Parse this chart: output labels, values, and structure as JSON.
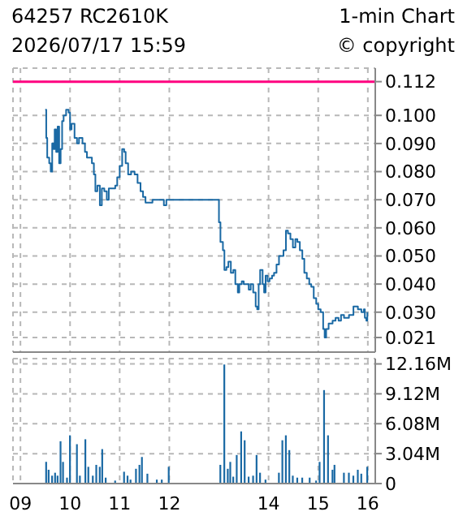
{
  "chart_data": [
    {
      "type": "step",
      "title": "64257 RC2610K",
      "subtitle": "1-min Chart",
      "annotations": [
        "2026/07/17 15:59",
        "© copyright"
      ],
      "xlim": [
        8.85,
        16.15
      ],
      "xticks": [
        9,
        10,
        11,
        12,
        14,
        15,
        16
      ],
      "ylim": [
        0.0158,
        0.1168
      ],
      "yticks": [
        0.021,
        {
          "value": 0.03,
          "label": "0.030"
        },
        {
          "value": 0.04,
          "label": "0.040"
        },
        {
          "value": 0.05,
          "label": "0.050"
        },
        {
          "value": 0.06,
          "label": "0.060"
        },
        {
          "value": 0.07,
          "label": "0.070"
        },
        {
          "value": 0.08,
          "label": "0.080"
        },
        {
          "value": 0.09,
          "label": "0.090"
        },
        {
          "value": 0.1,
          "label": "0.100"
        },
        0.112
      ],
      "tick_labels": "y",
      "grid": true,
      "ref_lines": [
        {
          "axis": "y",
          "value": 0.112,
          "color": "#ff0080"
        }
      ],
      "series": [
        {
          "color": "#1a69a4",
          "x": [
            9.5,
            9.52,
            9.54,
            9.58,
            9.61,
            9.64,
            9.67,
            9.69,
            9.72,
            9.75,
            9.78,
            9.81,
            9.84,
            9.87,
            9.92,
            9.97,
            10.0,
            10.03,
            10.09,
            10.14,
            10.18,
            10.25,
            10.3,
            10.34,
            10.39,
            10.44,
            10.48,
            10.51,
            10.55,
            10.6,
            10.64,
            10.69,
            10.74,
            10.78,
            10.84,
            10.91,
            10.95,
            11.0,
            11.05,
            11.09,
            11.12,
            11.17,
            11.23,
            11.3,
            11.36,
            11.42,
            11.47,
            11.52,
            11.59,
            11.66,
            11.75,
            11.85,
            11.89,
            11.94,
            11.99,
            13.0,
            13.03,
            13.08,
            13.11,
            13.15,
            13.19,
            13.24,
            13.29,
            13.33,
            13.38,
            13.41,
            13.46,
            13.5,
            13.55,
            13.6,
            13.64,
            13.69,
            13.74,
            13.77,
            13.8,
            13.83,
            13.88,
            13.91,
            13.94,
            13.98,
            14.02,
            14.07,
            14.11,
            14.16,
            14.21,
            14.25,
            14.3,
            14.35,
            14.39,
            14.44,
            14.49,
            14.54,
            14.58,
            14.63,
            14.68,
            14.72,
            14.77,
            14.82,
            14.86,
            14.91,
            14.96,
            15.0,
            15.05,
            15.1,
            15.13,
            15.16,
            15.21,
            15.29,
            15.35,
            15.41,
            15.46,
            15.52,
            15.62,
            15.71,
            15.8,
            15.87,
            15.92,
            15.94,
            15.97,
            15.99
          ],
          "values": [
            0.102,
            0.092,
            0.085,
            0.083,
            0.08,
            0.09,
            0.088,
            0.095,
            0.087,
            0.096,
            0.083,
            0.088,
            0.098,
            0.1,
            0.102,
            0.101,
            0.095,
            0.097,
            0.092,
            0.09,
            0.092,
            0.09,
            0.087,
            0.085,
            0.085,
            0.083,
            0.079,
            0.073,
            0.075,
            0.068,
            0.074,
            0.073,
            0.07,
            0.074,
            0.074,
            0.075,
            0.078,
            0.082,
            0.088,
            0.087,
            0.083,
            0.079,
            0.08,
            0.079,
            0.076,
            0.073,
            0.071,
            0.069,
            0.069,
            0.07,
            0.07,
            0.07,
            0.068,
            0.07,
            0.07,
            0.062,
            0.055,
            0.052,
            0.045,
            0.046,
            0.048,
            0.044,
            0.045,
            0.04,
            0.037,
            0.04,
            0.041,
            0.04,
            0.04,
            0.038,
            0.04,
            0.037,
            0.032,
            0.031,
            0.04,
            0.045,
            0.04,
            0.037,
            0.043,
            0.041,
            0.042,
            0.043,
            0.044,
            0.047,
            0.05,
            0.05,
            0.052,
            0.059,
            0.058,
            0.056,
            0.053,
            0.056,
            0.055,
            0.052,
            0.049,
            0.044,
            0.042,
            0.04,
            0.039,
            0.035,
            0.033,
            0.031,
            0.03,
            0.024,
            0.021,
            0.024,
            0.026,
            0.027,
            0.028,
            0.027,
            0.029,
            0.028,
            0.029,
            0.032,
            0.031,
            0.03,
            0.031,
            0.028,
            0.027,
            0.03
          ]
        }
      ]
    },
    {
      "type": "bar",
      "xlim": [
        8.85,
        16.15
      ],
      "xticks": [
        {
          "value": 9,
          "label": "09"
        },
        10,
        11,
        12,
        14,
        15,
        16
      ],
      "ylim": [
        0,
        12.7
      ],
      "yticks": [
        0,
        {
          "value": 3.04,
          "label": "3.04M"
        },
        {
          "value": 6.08,
          "label": "6.08M"
        },
        {
          "value": 9.12,
          "label": "9.12M"
        },
        {
          "value": 12.16,
          "label": "12.16M"
        }
      ],
      "grid": true,
      "series": [
        {
          "color": "#1a69a4",
          "x": [
            9.52,
            9.57,
            9.64,
            9.7,
            9.75,
            9.81,
            9.86,
            9.94,
            10.0,
            10.14,
            10.2,
            10.31,
            10.37,
            10.46,
            10.53,
            10.6,
            10.65,
            10.72,
            10.91,
            11.09,
            11.16,
            11.22,
            11.33,
            11.4,
            11.45,
            11.56,
            11.75,
            11.85,
            11.99,
            13.03,
            13.11,
            13.18,
            13.23,
            13.29,
            13.36,
            13.45,
            13.52,
            13.6,
            13.69,
            13.76,
            13.83,
            13.94,
            14.21,
            14.28,
            14.35,
            14.42,
            14.49,
            14.58,
            14.68,
            14.83,
            14.96,
            15.03,
            15.12,
            15.2,
            15.29,
            15.33,
            15.52,
            15.62,
            15.71,
            15.8,
            15.87,
            15.99
          ],
          "values": [
            2.2,
            1.4,
            0.8,
            1.1,
            0.8,
            4.3,
            2.2,
            0.6,
            4.9,
            4.0,
            0.8,
            4.5,
            1.7,
            0.8,
            1.9,
            1.7,
            3.5,
            0.6,
            0.3,
            1.2,
            0.8,
            0.4,
            1.5,
            1.9,
            2.7,
            1.0,
            0.4,
            0.4,
            1.7,
            1.9,
            12.1,
            1.5,
            2.2,
            0.7,
            2.9,
            5.3,
            4.4,
            0.7,
            0.8,
            2.9,
            1.1,
            0.4,
            1.1,
            4.4,
            4.9,
            3.4,
            0.8,
            0.6,
            0.6,
            0.6,
            0.3,
            2.2,
            9.5,
            4.9,
            1.4,
            1.9,
            1.1,
            1.1,
            0.8,
            1.4,
            1.0,
            1.7
          ]
        }
      ]
    }
  ]
}
